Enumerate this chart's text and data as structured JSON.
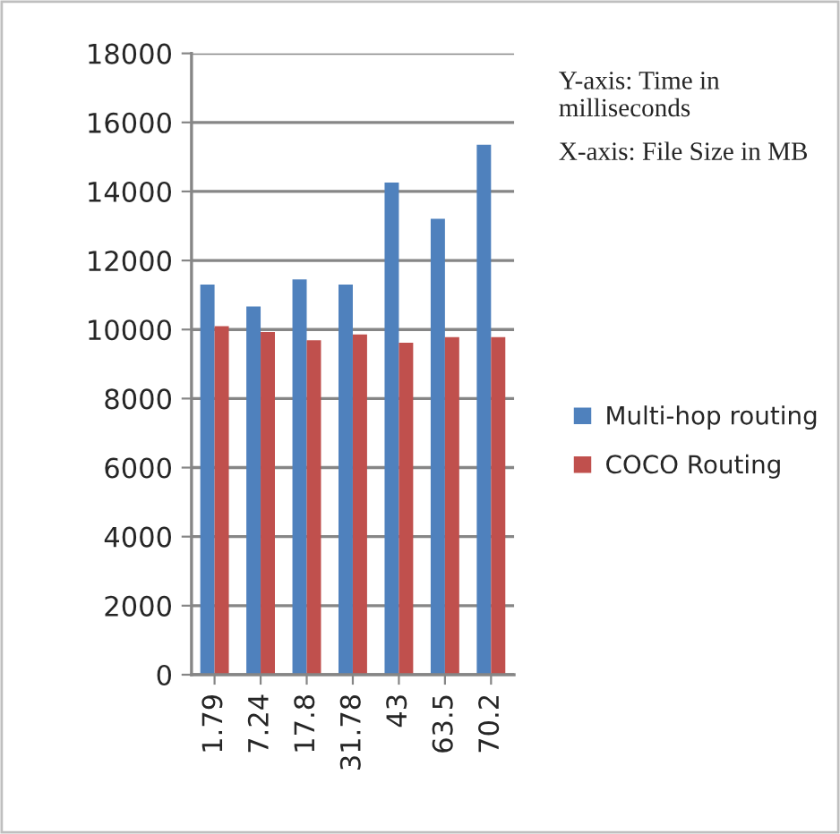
{
  "chart_data": {
    "type": "bar",
    "categories": [
      "1.79",
      "7.24",
      "17.8",
      "31.78",
      "43",
      "63.5",
      "70.2"
    ],
    "series": [
      {
        "name": "Multi-hop routing",
        "color": "#4f81bd",
        "values": [
          11300,
          10670,
          11450,
          11300,
          14260,
          13210,
          15350
        ]
      },
      {
        "name": "COCO Routing",
        "color": "#c0504d",
        "values": [
          10100,
          9930,
          9690,
          9860,
          9620,
          9780,
          9780
        ]
      }
    ],
    "ylim": [
      0,
      18000
    ],
    "yticks": [
      0,
      2000,
      4000,
      6000,
      8000,
      10000,
      12000,
      14000,
      16000,
      18000
    ],
    "grid": "y",
    "legend": "right",
    "annotations": [
      "Y-axis: Time in milliseconds",
      "X-axis: File Size in MB"
    ]
  }
}
